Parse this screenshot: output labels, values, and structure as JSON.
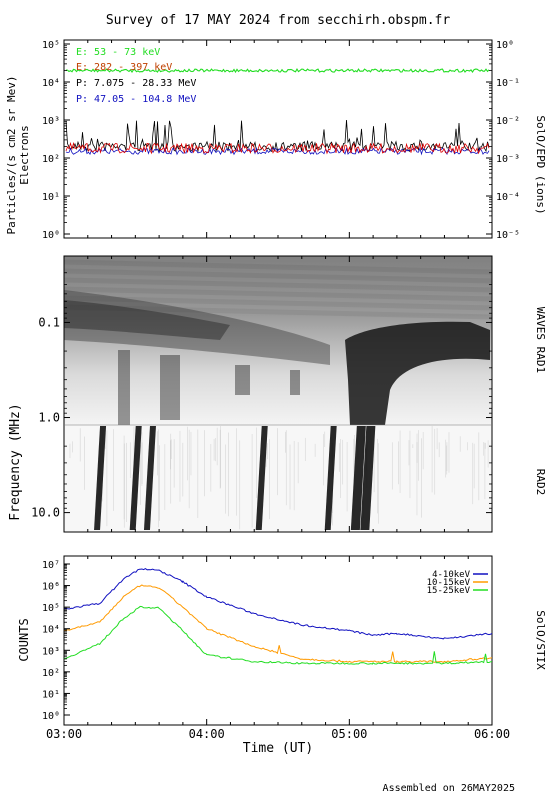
{
  "title": "Survey of 17 MAY 2024 from secchirh.obspm.fr",
  "footer": "Assembled on 26MAY2025",
  "colors": {
    "blue": "#1010c0",
    "orange": "#ff9a00",
    "green": "#00cc00",
    "red": "#dd0000",
    "lime": "#22dd22",
    "black": "#000000"
  },
  "chart_data": [
    {
      "type": "line",
      "panel": "epd",
      "ylabel": "Particles/(s cm2 sr Mev)",
      "ylabel2": "Electrons",
      "right_label": "SolO/EPD (ions)",
      "yscale": "log",
      "ylim": [
        1,
        100000
      ],
      "y_ticks": [
        "10⁰",
        "10¹",
        "10²",
        "10³",
        "10⁴",
        "10⁵"
      ],
      "y2lim": [
        1e-05,
        1
      ],
      "y2_ticks": [
        "10⁻⁵",
        "10⁻⁴",
        "10⁻³",
        "10⁻²",
        "10⁻¹",
        "10⁰"
      ],
      "xlim": [
        "03:00",
        "06:00"
      ],
      "series": [
        {
          "name": "E: 53 - 73 keV",
          "color": "#22dd22",
          "axis": "left",
          "level": 20000
        },
        {
          "name": "E: 282 - 397 keV",
          "color": "#dd0000",
          "axis": "left",
          "level": 180
        },
        {
          "name": "P: 7.075 - 28.33 MeV",
          "color": "#000000",
          "axis": "right",
          "level": 0.002
        },
        {
          "name": "P: 47.05 - 104.8 MeV",
          "color": "#1010c0",
          "axis": "right",
          "level": 0.0015
        }
      ]
    },
    {
      "type": "heatmap",
      "panel": "waves",
      "ylabel": "Frequency (MHz)",
      "yscale": "log",
      "right_label_top": "WAVES RAD1",
      "right_label_bottom": "RAD2",
      "ylim": [
        0.02,
        16
      ],
      "y_ticks": [
        "0.1",
        "1.0",
        "10.0"
      ],
      "xlim": [
        "03:00",
        "06:00"
      ],
      "bursts_ut": [
        "03:16",
        "03:31",
        "03:37",
        "04:24",
        "04:53",
        "05:04",
        "05:08"
      ]
    },
    {
      "type": "line",
      "panel": "stix",
      "ylabel": "COUNTS",
      "right_label": "SolO/STIX",
      "xlabel": "Time (UT)",
      "yscale": "log",
      "ylim": [
        1,
        10000000
      ],
      "y_ticks": [
        "10⁰",
        "10¹",
        "10²",
        "10³",
        "10⁴",
        "10⁵",
        "10⁶",
        "10⁷"
      ],
      "x": [
        "03:00",
        "03:15",
        "03:25",
        "03:32",
        "03:40",
        "03:50",
        "04:00",
        "04:20",
        "04:40",
        "05:00",
        "05:10",
        "05:20",
        "05:40",
        "06:00"
      ],
      "x_ticks": [
        "03:00",
        "04:00",
        "05:00",
        "06:00"
      ],
      "series": [
        {
          "name": "4-10keV",
          "color": "#1010c0",
          "values": [
            80000,
            150000,
            2000000,
            6000000,
            5000000,
            1500000,
            300000,
            50000,
            15000,
            8000,
            5000,
            6000,
            3500,
            6000
          ]
        },
        {
          "name": "10-15keV",
          "color": "#ff9a00",
          "values": [
            8000,
            20000,
            300000,
            1000000,
            800000,
            100000,
            10000,
            1500,
            400,
            300,
            300,
            300,
            300,
            450
          ]
        },
        {
          "name": "15-25keV",
          "color": "#22dd22",
          "values": [
            400,
            2000,
            30000,
            100000,
            90000,
            8000,
            600,
            300,
            250,
            250,
            250,
            250,
            250,
            300
          ]
        }
      ]
    }
  ]
}
